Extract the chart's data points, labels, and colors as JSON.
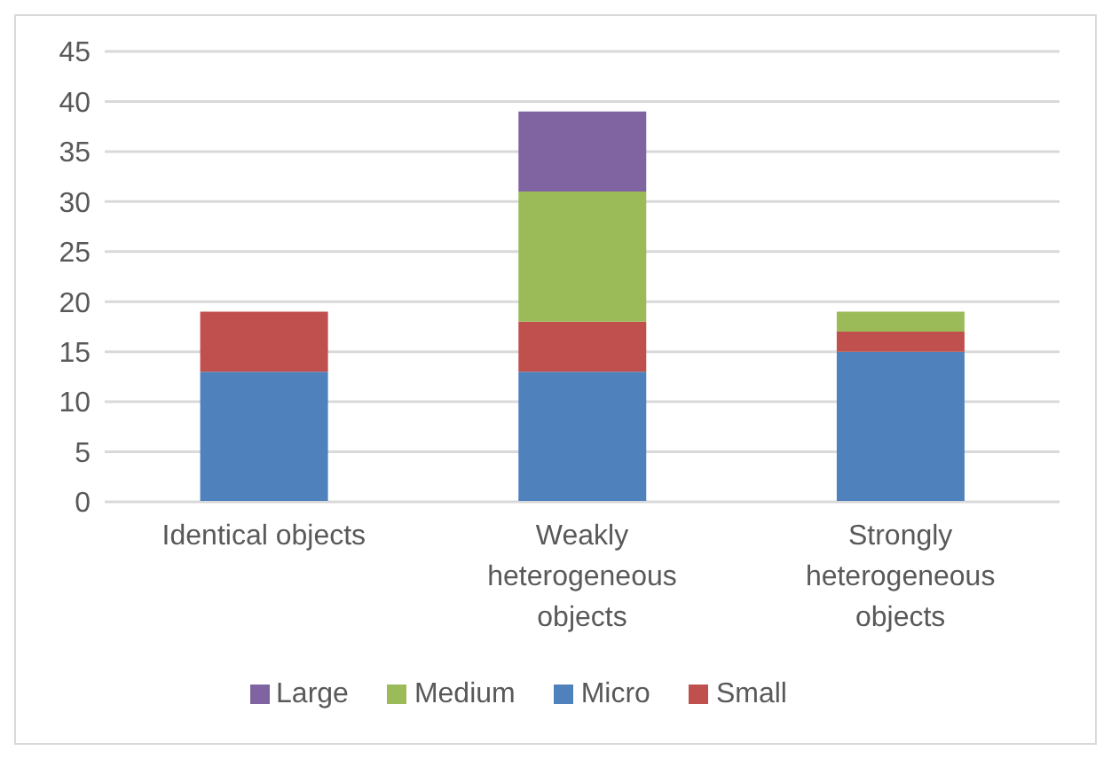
{
  "chart_data": {
    "type": "bar",
    "stacked": true,
    "categories": [
      "Identical objects",
      "Weakly heterogeneous objects",
      "Strongly heterogeneous objects"
    ],
    "series": [
      {
        "name": "Micro",
        "color": "#4f81bd",
        "values": [
          13,
          13,
          15
        ]
      },
      {
        "name": "Small",
        "color": "#c0504d",
        "values": [
          6,
          5,
          2
        ]
      },
      {
        "name": "Medium",
        "color": "#9bbb59",
        "values": [
          null,
          13,
          2
        ]
      },
      {
        "name": "Large",
        "color": "#8064a2",
        "values": [
          null,
          8,
          null
        ]
      }
    ],
    "ylim": [
      0,
      45
    ],
    "yticks": [
      0,
      5,
      10,
      15,
      20,
      25,
      30,
      35,
      40,
      45
    ],
    "grid": "y",
    "legend": "bottom"
  }
}
